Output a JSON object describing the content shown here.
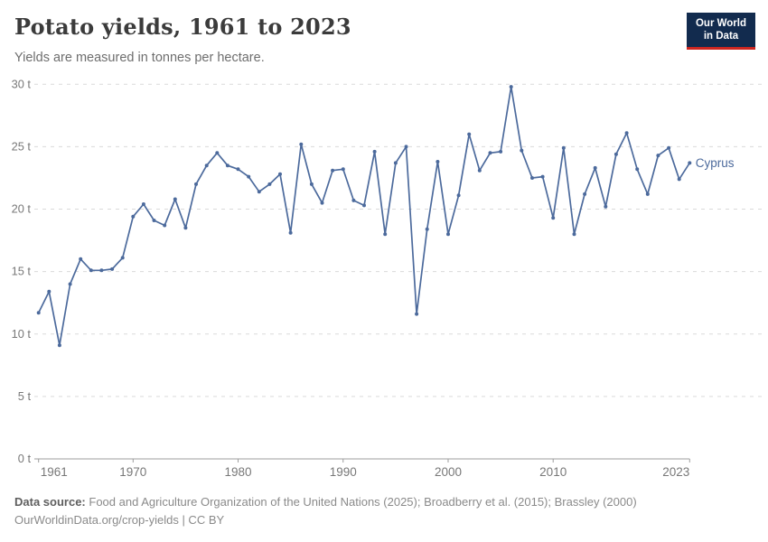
{
  "header": {
    "title": "Potato yields, 1961 to 2023",
    "subtitle": "Yields are measured in tonnes per hectare.",
    "logo": {
      "line1": "Our World",
      "line2": "in Data"
    }
  },
  "colors": {
    "series_blue": "#4C6A9C",
    "logo_navy": "#122B4E",
    "logo_red": "#CE2620",
    "gridline": "#dadada",
    "axis": "#9e9e9e",
    "tick_label": "#787878"
  },
  "chart_data": {
    "type": "line",
    "title": "Potato yields, 1961 to 2023",
    "subtitle": "Yields are measured in tonnes per hectare.",
    "xlabel": "",
    "ylabel": "tonnes per hectare",
    "xlim": [
      1961,
      2023
    ],
    "ylim": [
      0,
      30
    ],
    "x_ticks": [
      1961,
      1970,
      1980,
      1990,
      2000,
      2010,
      2023
    ],
    "y_ticks": [
      0,
      5,
      10,
      15,
      20,
      25,
      30
    ],
    "y_tick_suffix": " t",
    "grid": "horizontal-dashed",
    "legend": "end-of-line-label",
    "series": [
      {
        "name": "Cyprus",
        "color": "#4C6A9C",
        "x": [
          1961,
          1962,
          1963,
          1964,
          1965,
          1966,
          1967,
          1968,
          1969,
          1970,
          1971,
          1972,
          1973,
          1974,
          1975,
          1976,
          1977,
          1978,
          1979,
          1980,
          1981,
          1982,
          1983,
          1984,
          1985,
          1986,
          1987,
          1988,
          1989,
          1990,
          1991,
          1992,
          1993,
          1994,
          1995,
          1996,
          1997,
          1998,
          1999,
          2000,
          2001,
          2002,
          2003,
          2004,
          2005,
          2006,
          2007,
          2008,
          2009,
          2010,
          2011,
          2012,
          2013,
          2014,
          2015,
          2016,
          2017,
          2018,
          2019,
          2020,
          2021,
          2022,
          2023
        ],
        "values": [
          11.7,
          13.4,
          9.1,
          14.0,
          16.0,
          15.1,
          15.1,
          15.2,
          16.1,
          19.4,
          20.4,
          19.1,
          18.7,
          20.8,
          18.5,
          22.0,
          23.5,
          24.5,
          23.5,
          23.2,
          22.6,
          21.4,
          22.0,
          22.8,
          18.1,
          25.2,
          22.0,
          20.5,
          23.1,
          23.2,
          20.7,
          20.3,
          24.6,
          18.0,
          23.7,
          25.0,
          11.6,
          18.4,
          23.8,
          18.0,
          21.1,
          26.0,
          23.1,
          24.5,
          24.6,
          29.8,
          24.7,
          22.5,
          22.6,
          19.3,
          24.9,
          18.0,
          21.2,
          23.3,
          20.2,
          24.4,
          26.1,
          23.2,
          21.2,
          24.3,
          24.9,
          22.4,
          23.7
        ]
      }
    ]
  },
  "footer": {
    "source_label": "Data source:",
    "source_text": "Food and Agriculture Organization of the United Nations (2025); Broadberry et al. (2015); Brassley (2000)",
    "link_line": "OurWorldinData.org/crop-yields | CC BY"
  }
}
